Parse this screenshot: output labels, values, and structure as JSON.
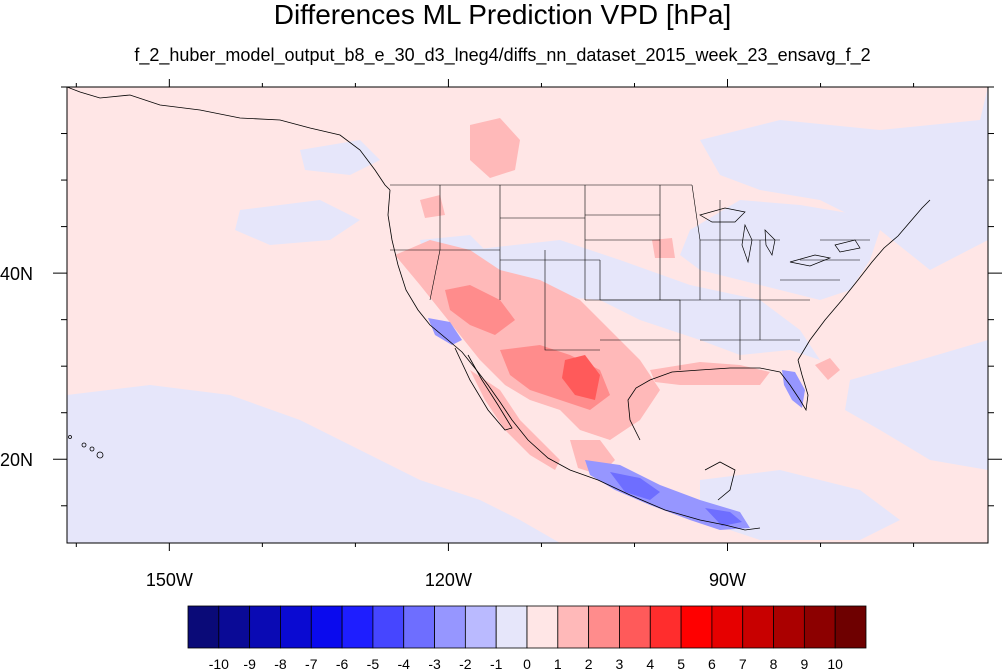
{
  "title": "Differences ML Prediction VPD [hPa]",
  "subtitle": "f_2_huber_model_output_b8_e_30_d3_lneg4/diffs_nn_dataset_2015_week_23_ensavg_f_2",
  "map": {
    "projection": "cylindrical-equidistant",
    "lon_range": [
      -161,
      -62
    ],
    "lat_range": [
      11,
      60
    ],
    "lon_ticks": [
      {
        "value": -150,
        "label": "150W"
      },
      {
        "value": -120,
        "label": "120W"
      },
      {
        "value": -90,
        "label": "90W"
      }
    ],
    "lat_ticks": [
      {
        "value": 40,
        "label": "40N"
      },
      {
        "value": 20,
        "label": "20N"
      }
    ]
  },
  "colorbar": {
    "labels": [
      "-10",
      "-9",
      "-8",
      "-7",
      "-6",
      "-5",
      "-4",
      "-3",
      "-2",
      "-1",
      "0",
      "1",
      "2",
      "3",
      "4",
      "5",
      "6",
      "7",
      "8",
      "9",
      "10"
    ],
    "colors": [
      "#0a0a78",
      "#0a0a96",
      "#0a0ab4",
      "#0a0ad2",
      "#0a0aee",
      "#1e1eff",
      "#4646ff",
      "#6e6eff",
      "#9696ff",
      "#babaff",
      "#e6e6fa",
      "#ffe6e6",
      "#ffb9b9",
      "#ff8c8c",
      "#ff5a5a",
      "#ff2d2d",
      "#ff0000",
      "#e60000",
      "#c80000",
      "#aa0000",
      "#8c0000",
      "#6e0000"
    ]
  }
}
